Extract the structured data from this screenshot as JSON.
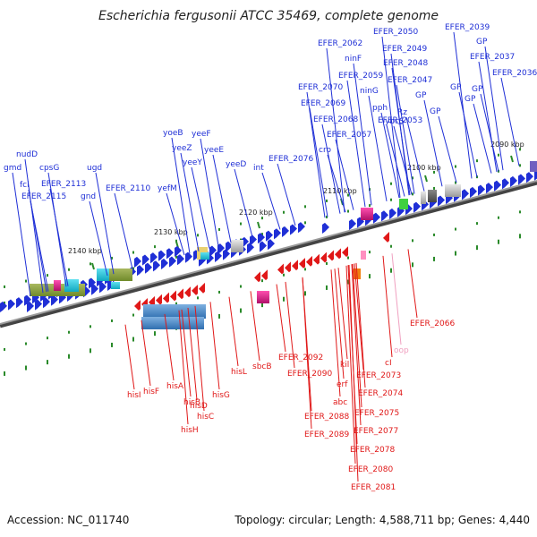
{
  "title": "Escherichia fergusonii ATCC 35469, complete genome",
  "footer": {
    "accession": "Accession: NC_011740",
    "summary": "Topology: circular; Length: 4,588,711 bp; Genes: 4,440"
  },
  "colors": {
    "forward_gene": "#1f2fd6",
    "reverse_gene": "#e01818",
    "backbone": "#808080",
    "tick": "#2a8a2a",
    "pseudo_label": "#f0a0c0"
  },
  "ticks": [
    "2090 kbp",
    "2100 kbp",
    "2110 kbp",
    "2120 kbp",
    "2130 kbp",
    "2140 kbp"
  ],
  "forward_labels": [
    "gmd",
    "fcl",
    "nudD",
    "cpsG",
    "EFER_2115",
    "EFER_2113",
    "gnd",
    "ugd",
    "EFER_2110",
    "yefM",
    "yoeB",
    "yeeZ",
    "yeeY",
    "yeeF",
    "yeeE",
    "yeeD",
    "int",
    "EFER_2076",
    "EFER_2070",
    "EFER_2069",
    "EFER_2068",
    "EFER_2067",
    "cro",
    "EFER_2062",
    "ninF",
    "EFER_2059",
    "ninG",
    "pph",
    "ybcS",
    "Rz",
    "EFER_2053",
    "EFER_2050",
    "EFER_2049",
    "EFER_2048",
    "EFER_2047",
    "GP",
    "GP",
    "GP",
    "GP",
    "GP",
    "GP",
    "EFER_2039",
    "EFER_2037",
    "EFER_2036"
  ],
  "reverse_labels": [
    "hisI",
    "hisF",
    "hisA",
    "hisB",
    "hisD",
    "hisC",
    "hisG",
    "hisH",
    "hisL",
    "sbcB",
    "EFER_2092",
    "EFER_2090",
    "abc",
    "erf",
    "kil",
    "EFER_2088",
    "EFER_2089",
    "cI",
    "EFER_2073",
    "EFER_2074",
    "EFER_2075",
    "EFER_2077",
    "EFER_2078",
    "EFER_2080",
    "EFER_2081",
    "oop",
    "EFER_2066"
  ]
}
